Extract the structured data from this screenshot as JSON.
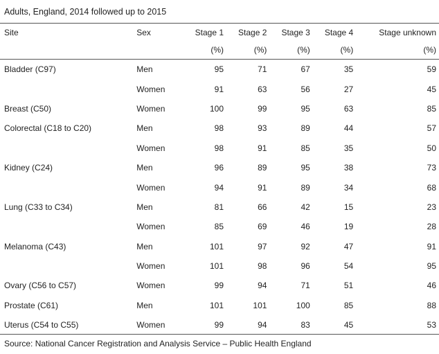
{
  "caption": "Adults, England, 2014 followed up to 2015",
  "headers": {
    "site": "Site",
    "sex": "Sex",
    "stage1": "Stage 1",
    "stage2": "Stage 2",
    "stage3": "Stage 3",
    "stage4": "Stage 4",
    "stage_unknown": "Stage unknown",
    "unit": "(%)"
  },
  "rows": [
    {
      "site": "Bladder (C97)",
      "sex": "Men",
      "s1": "95",
      "s2": "71",
      "s3": "67",
      "s4": "35",
      "su": "59"
    },
    {
      "site": "",
      "sex": "Women",
      "s1": "91",
      "s2": "63",
      "s3": "56",
      "s4": "27",
      "su": "45"
    },
    {
      "site": "Breast (C50)",
      "sex": "Women",
      "s1": "100",
      "s2": "99",
      "s3": "95",
      "s4": "63",
      "su": "85"
    },
    {
      "site": "Colorectal (C18 to C20)",
      "sex": "Men",
      "s1": "98",
      "s2": "93",
      "s3": "89",
      "s4": "44",
      "su": "57"
    },
    {
      "site": "",
      "sex": "Women",
      "s1": "98",
      "s2": "91",
      "s3": "85",
      "s4": "35",
      "su": "50"
    },
    {
      "site": "Kidney (C24)",
      "sex": "Men",
      "s1": "96",
      "s2": "89",
      "s3": "95",
      "s4": "38",
      "su": "73"
    },
    {
      "site": "",
      "sex": "Women",
      "s1": "94",
      "s2": "91",
      "s3": "89",
      "s4": "34",
      "su": "68"
    },
    {
      "site": "Lung (C33 to C34)",
      "sex": "Men",
      "s1": "81",
      "s2": "66",
      "s3": "42",
      "s4": "15",
      "su": "23"
    },
    {
      "site": "",
      "sex": "Women",
      "s1": "85",
      "s2": "69",
      "s3": "46",
      "s4": "19",
      "su": "28"
    },
    {
      "site": "Melanoma (C43)",
      "sex": "Men",
      "s1": "101",
      "s2": "97",
      "s3": "92",
      "s4": "47",
      "su": "91"
    },
    {
      "site": "",
      "sex": "Women",
      "s1": "101",
      "s2": "98",
      "s3": "96",
      "s4": "54",
      "su": "95"
    },
    {
      "site": "Ovary (C56 to C57)",
      "sex": "Women",
      "s1": "99",
      "s2": "94",
      "s3": "71",
      "s4": "51",
      "su": "46"
    },
    {
      "site": "Prostate (C61)",
      "sex": "Men",
      "s1": "101",
      "s2": "101",
      "s3": "100",
      "s4": "85",
      "su": "88"
    },
    {
      "site": "Uterus (C54 to C55)",
      "sex": "Women",
      "s1": "99",
      "s2": "94",
      "s3": "83",
      "s4": "45",
      "su": "53"
    }
  ],
  "source": "Source: National Cancer Registration and Analysis Service – Public Health England"
}
